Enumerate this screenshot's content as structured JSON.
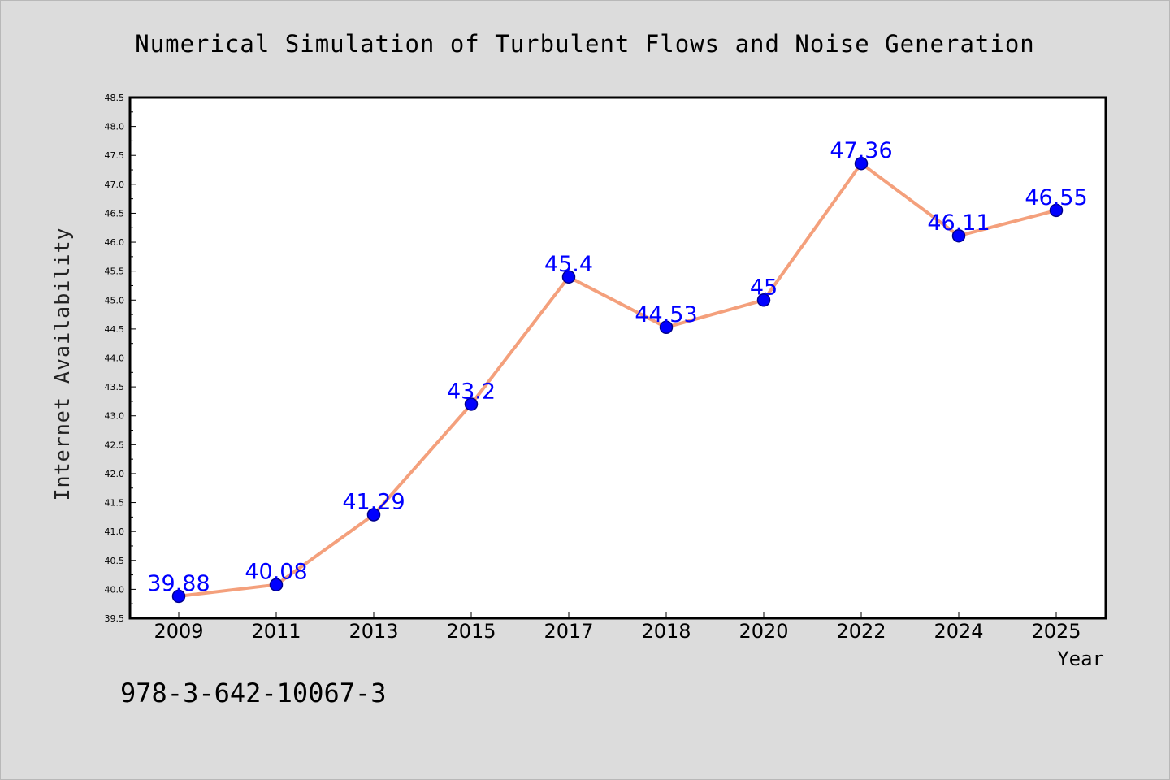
{
  "chart_data": {
    "type": "line",
    "title": "Numerical Simulation of Turbulent Flows and Noise Generation",
    "xlabel": "Year",
    "ylabel": "Internet Availability",
    "categories": [
      "2009",
      "2011",
      "2013",
      "2015",
      "2017",
      "2018",
      "2020",
      "2022",
      "2024",
      "2025"
    ],
    "values": [
      39.88,
      40.08,
      41.29,
      43.2,
      45.4,
      44.53,
      45,
      47.36,
      46.11,
      46.55
    ],
    "data_labels": [
      "39.88",
      "40.08",
      "41.29",
      "43.2",
      "45.4",
      "44.53",
      "45",
      "47.36",
      "46.11",
      "46.55"
    ],
    "ylim": [
      39.5,
      48.5
    ],
    "yticks": [
      "39.5",
      "40.0",
      "40.5",
      "41.0",
      "41.5",
      "42.0",
      "42.5",
      "43.0",
      "43.5",
      "44.0",
      "44.5",
      "45.0",
      "45.5",
      "46.0",
      "46.5",
      "47.0",
      "47.5",
      "48.0",
      "48.5"
    ],
    "grid": false,
    "legend": "none",
    "colors": {
      "line": "#f4a07c",
      "marker": "#0000ff",
      "marker_edge": "#00008b",
      "data_label": "#0000ff",
      "background": "#dcdcdc",
      "plot_background": "#ffffff"
    }
  },
  "footer": {
    "isbn": "978-3-642-10067-3"
  }
}
